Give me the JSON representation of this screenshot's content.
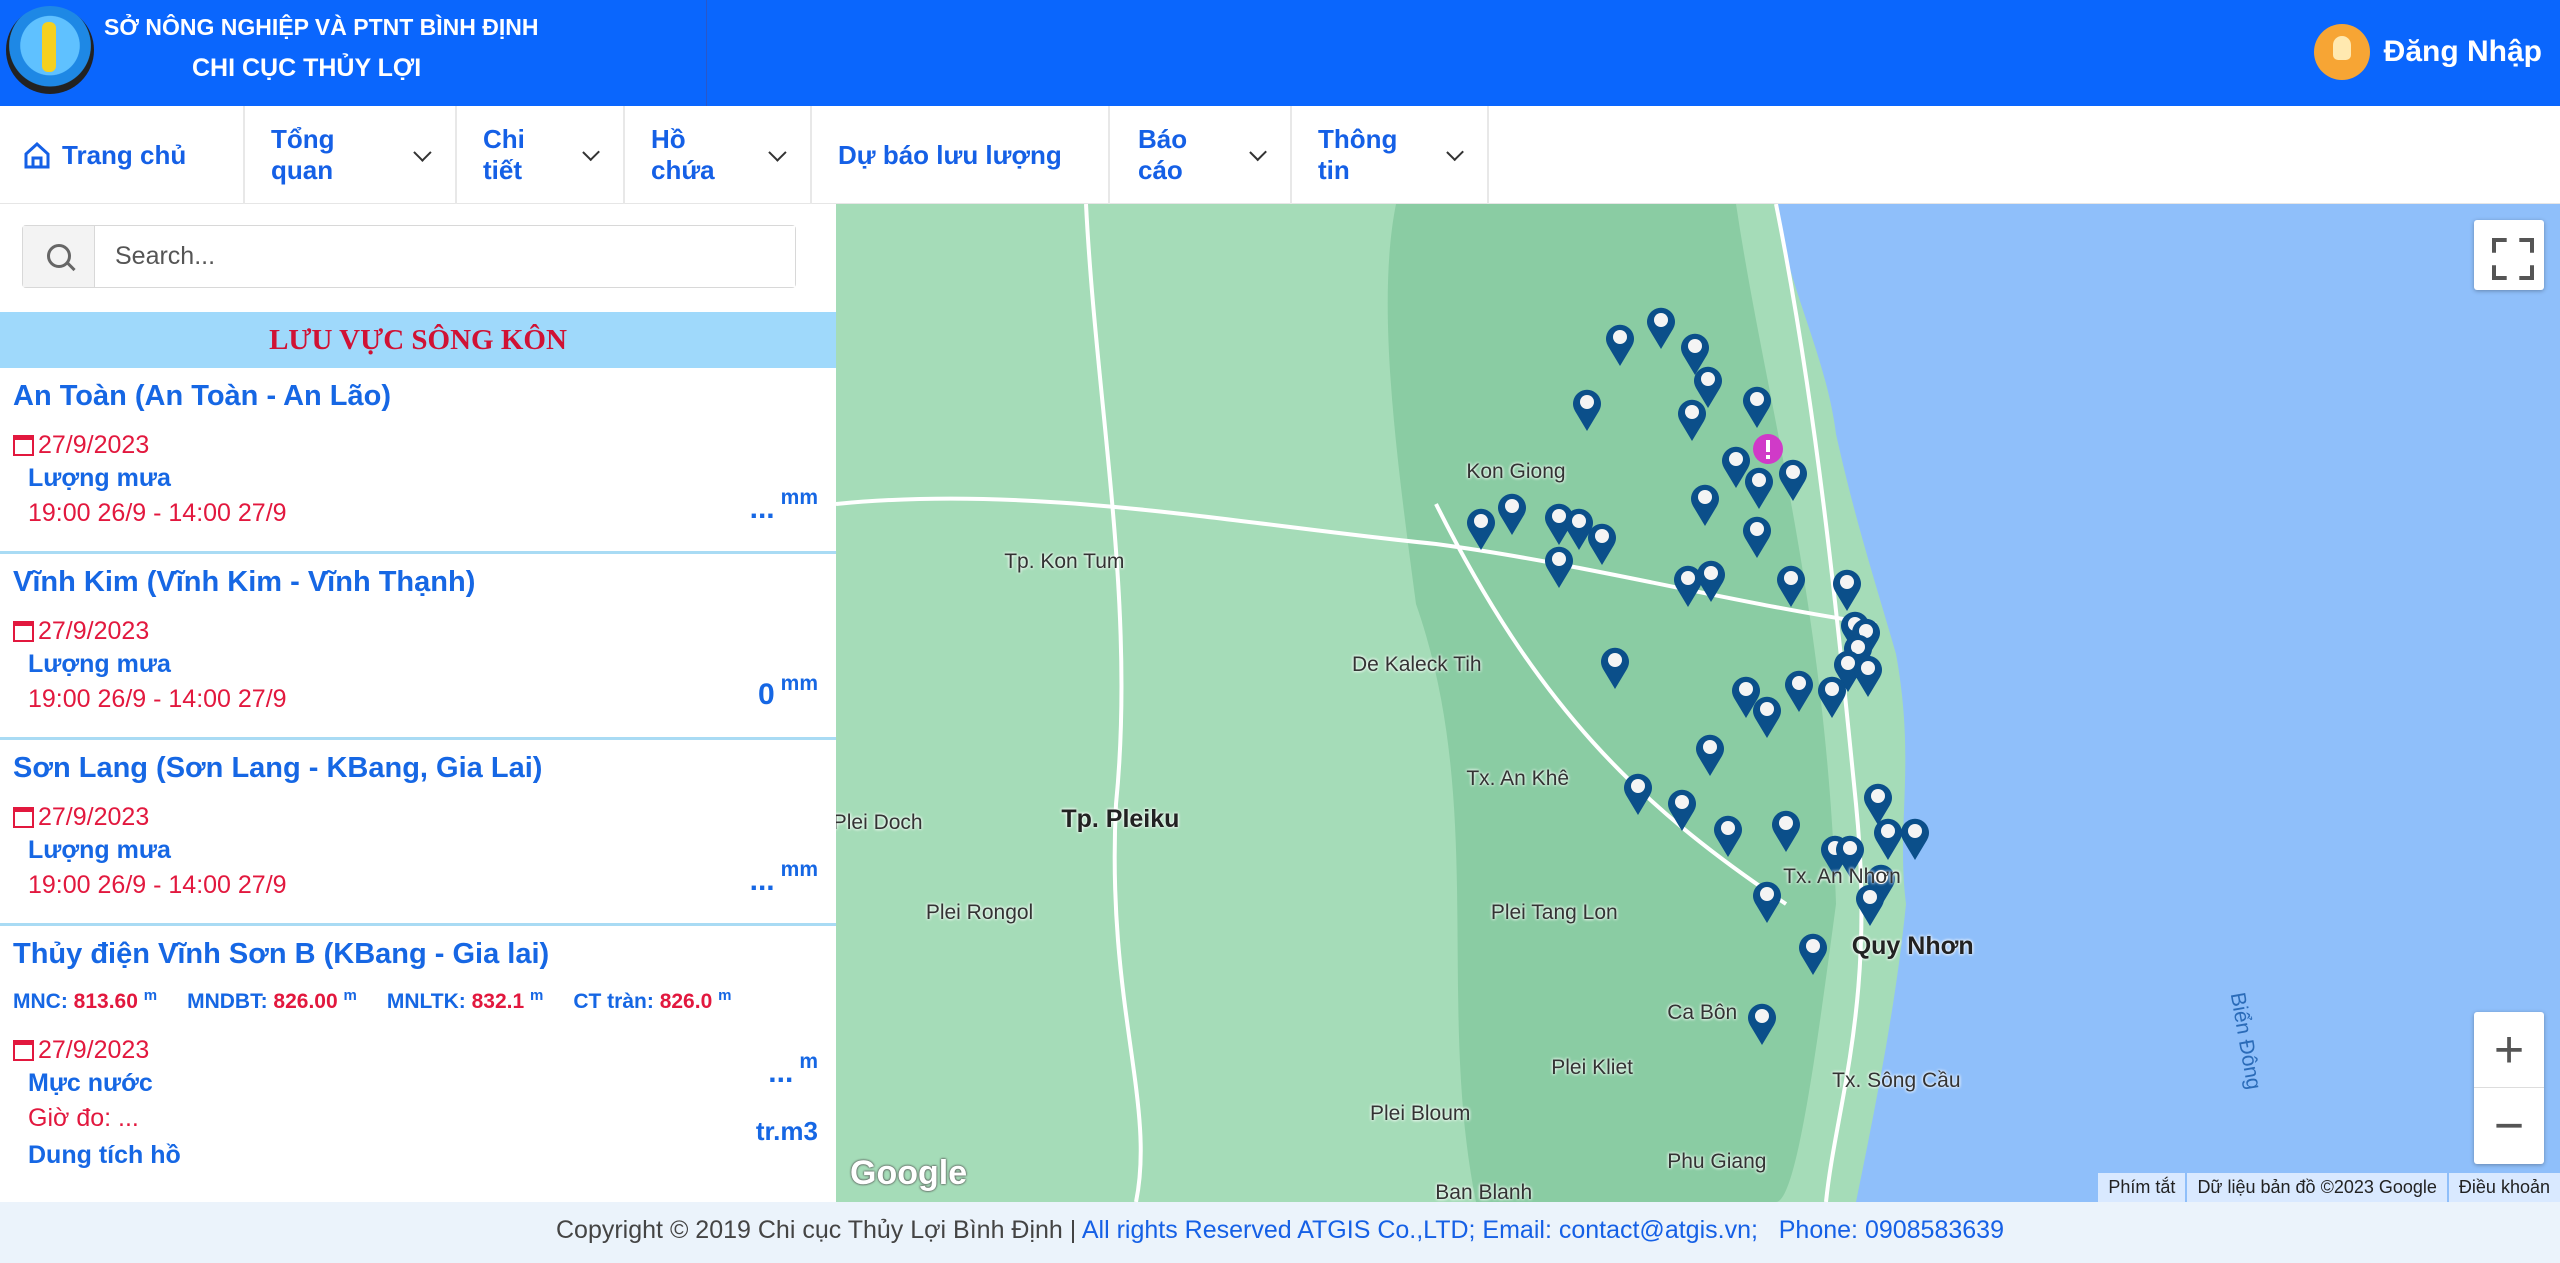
{
  "header": {
    "org": "SỞ NÔNG NGHIỆP VÀ PTNT BÌNH ĐỊNH",
    "dept": "CHI CỤC THỦY LỢI",
    "login": "Đăng Nhập"
  },
  "nav": [
    {
      "label": "Trang chủ",
      "icon": "home-icon"
    },
    {
      "label": "Tổng quan"
    },
    {
      "label": "Chi tiết"
    },
    {
      "label": "Hồ chứa"
    },
    {
      "label": "Dự báo lưu lượng"
    },
    {
      "label": "Báo cáo"
    },
    {
      "label": "Thông tin"
    }
  ],
  "search": {
    "placeholder": "Search...",
    "value": ""
  },
  "basin": "LƯU VỰC SÔNG KÔN",
  "stations": [
    {
      "title": "An Toàn (An Toàn - An Lão)",
      "date": "27/9/2023",
      "label": "Lượng mưa",
      "time": "19:00 26/9 - 14:00 27/9",
      "value": "...",
      "unit": "mm"
    },
    {
      "title": "Vĩnh Kim (Vĩnh Kim - Vĩnh Thạnh)",
      "date": "27/9/2023",
      "label": "Lượng mưa",
      "time": "19:00 26/9 - 14:00 27/9",
      "value": "0",
      "unit": "mm"
    },
    {
      "title": "Sơn Lang (Sơn Lang - KBang, Gia Lai)",
      "date": "27/9/2023",
      "label": "Lượng mưa",
      "time": "19:00 26/9 - 14:00 27/9",
      "value": "...",
      "unit": "mm"
    }
  ],
  "reservoir": {
    "title": "Thủy điện Vĩnh Sơn B (KBang - Gia lai)",
    "specs": [
      {
        "k": "MNC:",
        "v": "813.60",
        "u": "m"
      },
      {
        "k": "MNDBT:",
        "v": "826.00",
        "u": "m"
      },
      {
        "k": "MNLTK:",
        "v": "832.1",
        "u": "m"
      },
      {
        "k": "CT tràn:",
        "v": "826.0",
        "u": "m"
      }
    ],
    "date": "27/9/2023",
    "level_label": "Mực nước",
    "level_value": "...",
    "level_unit": "m",
    "measure_time": "Giờ đo: ...",
    "capacity_label": "Dung tích hồ",
    "capacity_unit": "tr.m3"
  },
  "map": {
    "places": [
      "Kon Giong",
      "Tp. Kon Tum",
      "De Kaleck Tih",
      "Tx. An Khê",
      "Tp. Pleiku",
      "Plei Doch",
      "Plei Rongol",
      "Plei Tang Lon",
      "Tx. An Nhơn",
      "Quy Nhơn",
      "Ca Bôn",
      "Plei Kliet",
      "Plei Bloum",
      "Tx. Sông Cầu",
      "Phu Giang",
      "Ban Blanh",
      "Biển Đông"
    ],
    "google_logo": "Google",
    "attribution": [
      "Phím tắt",
      "Dữ liệu bản đồ ©2023 Google",
      "Điều khoản"
    ],
    "zoom_in": "+",
    "zoom_out": "−",
    "colors": {
      "land": "#9fd9b4",
      "sea": "#8fbffa",
      "marker": "#0b4f8a",
      "alert_marker": "#d03ac8"
    }
  },
  "footer": {
    "copyright": "Copyright © 2019 Chi cục Thủy Lợi Bình Định | ",
    "rights": "All rights Reserved ATGIS Co.,LTD; Email: contact@atgis.vn;",
    "phone": "   Phone: 0908583639"
  }
}
